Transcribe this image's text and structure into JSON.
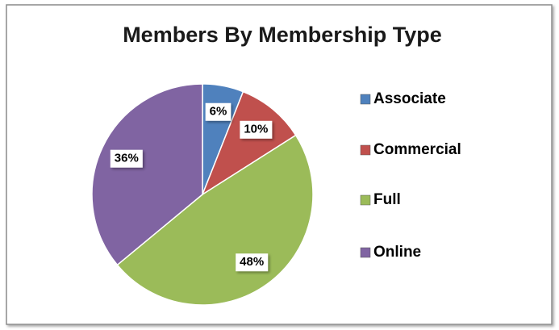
{
  "chart_data": {
    "type": "pie",
    "title": "Members By Membership Type",
    "categories": [
      "Associate",
      "Commercial",
      "Full",
      "Online"
    ],
    "values": [
      6,
      10,
      48,
      36
    ],
    "value_labels": [
      "6%",
      "10%",
      "48%",
      "36%"
    ],
    "colors": [
      "#4f81bd",
      "#c0504d",
      "#9bbb59",
      "#8064a2"
    ],
    "legend": "right"
  }
}
